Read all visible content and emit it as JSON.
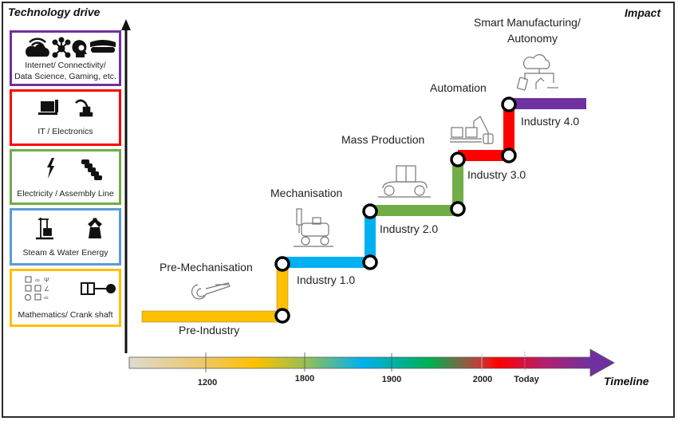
{
  "axes": {
    "y_title": "Technology drive",
    "right_title": "Impact",
    "x_title": "Timeline"
  },
  "technology_drivers": [
    {
      "label": "Internet/ Connectivity/ Data Science, Gaming, etc.",
      "line1": "Internet/ Connectivity/",
      "line2": "Data Science, Gaming, etc.",
      "color": "#7030a0",
      "icons": [
        "wifi-cloud-icon",
        "network-icon",
        "brain-head-icon",
        "vr-headset-icon"
      ]
    },
    {
      "label": "IT / Electronics",
      "color": "#ff0000",
      "icons": [
        "computer-icon",
        "robot-arm-icon"
      ]
    },
    {
      "label": "Electricity / Assembly Line",
      "color": "#70ad47",
      "icons": [
        "lightning-icon",
        "cars-line-icon"
      ]
    },
    {
      "label": "Steam & Water Energy",
      "color": "#5b9bd5",
      "icons": [
        "steam-engine-icon",
        "windmill-icon"
      ]
    },
    {
      "label": "Mathematics/ Crank shaft",
      "color": "#ffc000",
      "icons": [
        "math-symbols-icon",
        "crank-piston-icon"
      ]
    }
  ],
  "stages": [
    {
      "era": "Pre-Industry",
      "impact": "Pre-Mechanisation",
      "color": "#ffc000"
    },
    {
      "era": "Industry 1.0",
      "impact": "Mechanisation",
      "color": "#00b0f0"
    },
    {
      "era": "Industry 2.0",
      "impact": "Mass Production",
      "color": "#70ad47"
    },
    {
      "era": "Industry 3.0",
      "impact": "Automation",
      "color": "#ff0000"
    },
    {
      "era": "Industry 4.0",
      "impact_line1": "Smart Manufacturing/",
      "impact_line2": "Autonomy",
      "impact": "Smart Manufacturing/ Autonomy",
      "color": "#7030a0"
    }
  ],
  "timeline": {
    "ticks": [
      "1200",
      "1800",
      "1900",
      "2000",
      "Today"
    ],
    "gradient_colors": [
      "#d9d9d9",
      "#ffc000",
      "#00b0f0",
      "#00b050",
      "#ff0000",
      "#7030a0"
    ]
  }
}
